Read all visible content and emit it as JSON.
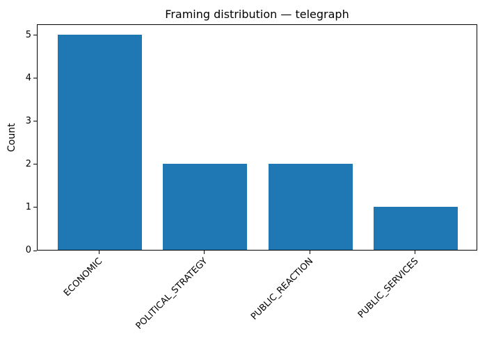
{
  "chart_data": {
    "type": "bar",
    "title": "Framing distribution — telegraph",
    "categories": [
      "ECONOMIC",
      "POLITICAL_STRATEGY",
      "PUBLIC_REACTION",
      "PUBLIC_SERVICES"
    ],
    "values": [
      5,
      2,
      2,
      1
    ],
    "xlabel": "",
    "ylabel": "Count",
    "yticks": [
      0,
      1,
      2,
      3,
      4,
      5
    ],
    "ylim": [
      0,
      5.25
    ],
    "x_tick_rotation_deg": 45,
    "bar_color": "#1f77b4",
    "axis_color": "#000000",
    "text_color": "#000000",
    "background_color": "#ffffff",
    "grid": "off",
    "legend": "none"
  }
}
